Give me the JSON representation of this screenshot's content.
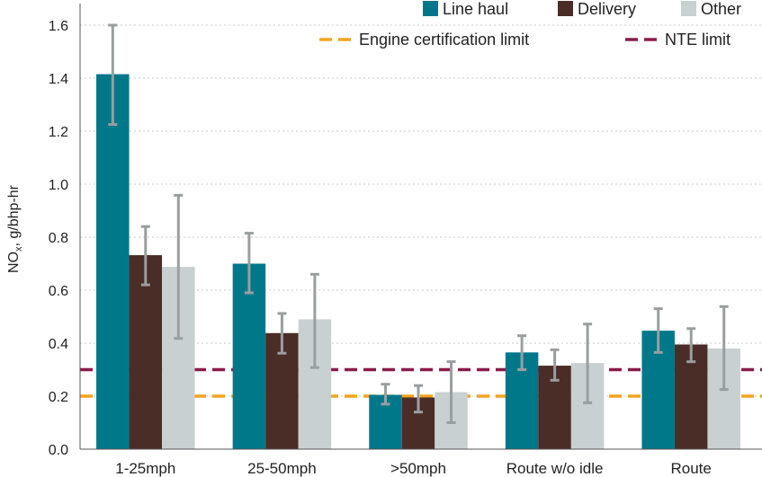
{
  "chart_data": {
    "type": "bar",
    "categories": [
      "1-25mph",
      "25-50mph",
      ">50mph",
      "Route w/o idle",
      "Route"
    ],
    "series": [
      {
        "name": "Line haul",
        "color": "#00788a",
        "values": [
          1.415,
          0.7,
          0.205,
          0.365,
          0.447
        ],
        "err_low": [
          1.225,
          0.59,
          0.17,
          0.3,
          0.365
        ],
        "err_high": [
          1.6,
          0.815,
          0.245,
          0.428,
          0.53
        ]
      },
      {
        "name": "Delivery",
        "color": "#4a2d27",
        "values": [
          0.732,
          0.438,
          0.195,
          0.315,
          0.395
        ],
        "err_low": [
          0.62,
          0.362,
          0.14,
          0.26,
          0.33
        ],
        "err_high": [
          0.84,
          0.512,
          0.24,
          0.375,
          0.455
        ]
      },
      {
        "name": "Other",
        "color": "#c9d0d2",
        "values": [
          0.688,
          0.49,
          0.215,
          0.325,
          0.38
        ],
        "err_low": [
          0.418,
          0.308,
          0.1,
          0.175,
          0.225
        ],
        "err_high": [
          0.958,
          0.66,
          0.33,
          0.472,
          0.538
        ]
      }
    ],
    "reference_lines": [
      {
        "name": "Engine certification limit",
        "value": 0.2,
        "color": "#f4a41e",
        "style": "dashed"
      },
      {
        "name": "NTE limit",
        "value": 0.3,
        "color": "#8a1b4b",
        "style": "dashed"
      }
    ],
    "ylabel": "NO",
    "ylabel_sub": "x",
    "ylabel_rest": ", g/bhp-hr",
    "ylim": [
      0,
      1.6
    ],
    "yticks": [
      "0.0",
      "0.2",
      "0.4",
      "0.6",
      "0.8",
      "1.0",
      "1.2",
      "1.4",
      "1.6"
    ],
    "grid": true,
    "legend_position": "top-right",
    "errorbar_color": "#9a9ea0"
  }
}
